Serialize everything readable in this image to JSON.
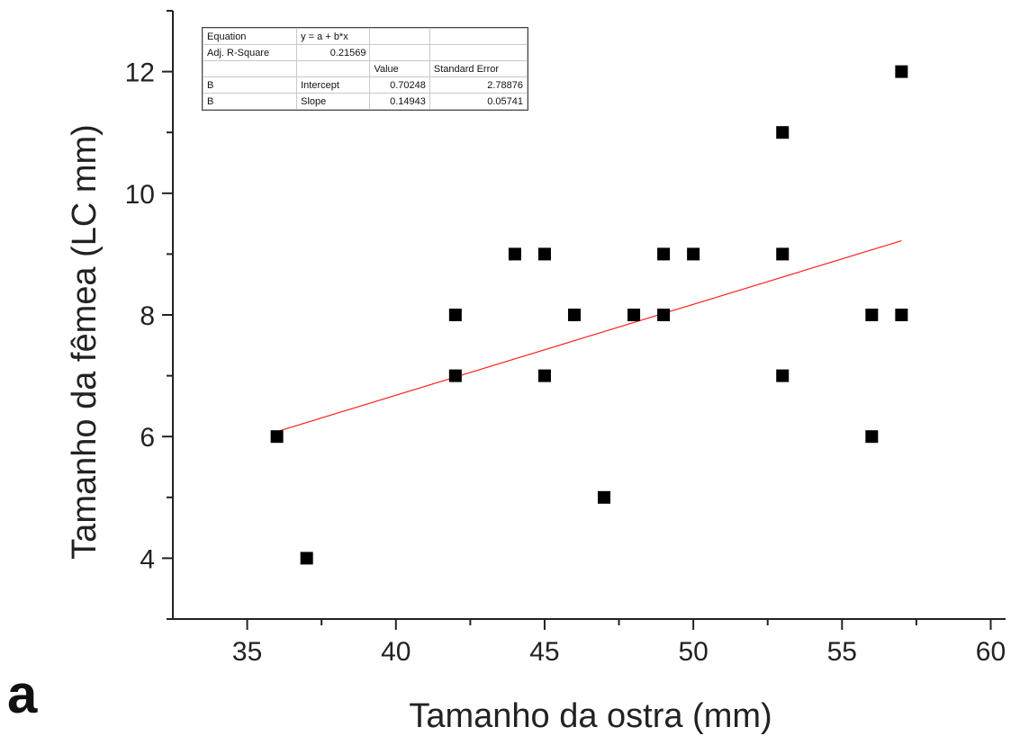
{
  "chart_data": {
    "type": "scatter",
    "xlabel": "Tamanho da ostra (mm)",
    "ylabel": "Tamanho da fêmea (LC mm)",
    "panel_label": "a",
    "xlim": [
      32.5,
      60.5
    ],
    "ylim": [
      3,
      13
    ],
    "x_ticks": [
      35,
      40,
      45,
      50,
      55,
      60
    ],
    "y_ticks": [
      4,
      6,
      8,
      10,
      12
    ],
    "grid": false,
    "marker": "square",
    "marker_color": "#000000",
    "fit_color": "#ff2020",
    "points": [
      {
        "x": 36,
        "y": 6
      },
      {
        "x": 37,
        "y": 4
      },
      {
        "x": 42,
        "y": 8
      },
      {
        "x": 42,
        "y": 7
      },
      {
        "x": 44,
        "y": 9
      },
      {
        "x": 45,
        "y": 9
      },
      {
        "x": 45,
        "y": 7
      },
      {
        "x": 46,
        "y": 8
      },
      {
        "x": 47,
        "y": 5
      },
      {
        "x": 48,
        "y": 8
      },
      {
        "x": 49,
        "y": 9
      },
      {
        "x": 49,
        "y": 8
      },
      {
        "x": 50,
        "y": 9
      },
      {
        "x": 53,
        "y": 11
      },
      {
        "x": 53,
        "y": 9
      },
      {
        "x": 53,
        "y": 7
      },
      {
        "x": 56,
        "y": 8
      },
      {
        "x": 56,
        "y": 6
      },
      {
        "x": 57,
        "y": 12
      },
      {
        "x": 57,
        "y": 8
      }
    ],
    "fit_line": {
      "intercept": 0.70248,
      "slope": 0.14943,
      "x_range": [
        36,
        57
      ]
    },
    "stats_table": {
      "equation_label": "Equation",
      "equation": "y = a + b*x",
      "adj_r2_label": "Adj. R-Square",
      "adj_r2": "0.21569",
      "col_value": "Value",
      "col_se": "Standard Error",
      "rows": [
        {
          "group": "B",
          "param": "Intercept",
          "value": "0.70248",
          "se": "2.78876"
        },
        {
          "group": "B",
          "param": "Slope",
          "value": "0.14943",
          "se": "0.05741"
        }
      ]
    }
  }
}
